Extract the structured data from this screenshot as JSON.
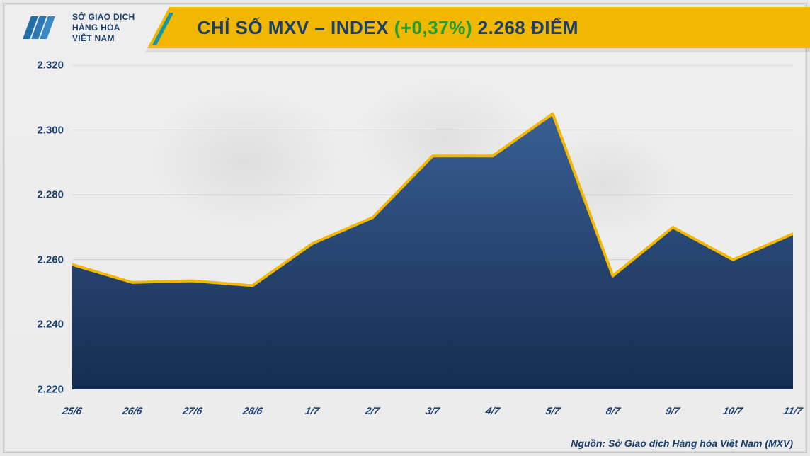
{
  "brand": {
    "org_line1": "SỞ GIAO DỊCH",
    "org_line2": "HÀNG HÓA",
    "org_line3": "VIỆT NAM",
    "logo_color": "#1f6ea8",
    "accent_color": "#f2b700"
  },
  "header": {
    "title_prefix": "CHỈ SỐ MXV – INDEX ",
    "change_pct": "(+0,37%)",
    "title_suffix": " 2.268 ĐIỂM",
    "banner_bg": "#f2b700",
    "title_color": "#1a3e6e",
    "pct_color": "#1f9d3a",
    "title_fontsize": 26,
    "accent_bar_color": "#1797a6"
  },
  "chart": {
    "type": "area",
    "categories": [
      "25/6",
      "26/6",
      "27/6",
      "28/6",
      "1/7",
      "2/7",
      "3/7",
      "4/7",
      "5/7",
      "8/7",
      "9/7",
      "10/7",
      "11/7"
    ],
    "values": [
      2258.5,
      2253,
      2253.5,
      2252,
      2265,
      2273,
      2292,
      2292,
      2305,
      2255,
      2270,
      2260,
      2268
    ],
    "ylim": [
      2220,
      2320
    ],
    "ytick_step": 20,
    "y_tick_labels": [
      "2.220",
      "2.240",
      "2.260",
      "2.280",
      "2.300",
      "2.320"
    ],
    "line_color": "#f2b700",
    "line_width": 4,
    "fill_top": "#3a5f94",
    "fill_bottom": "#142c50",
    "grid_color": "#c9c9c9",
    "axis_color": "#b5b5b5",
    "label_color": "#1a3e6e",
    "label_fontsize": 15,
    "xlabel_fontsize": 14,
    "background": "transparent"
  },
  "footer": {
    "source": "Nguồn: Sở Giao dịch Hàng hóa Việt Nam (MXV)",
    "color": "#1a3e6e"
  }
}
